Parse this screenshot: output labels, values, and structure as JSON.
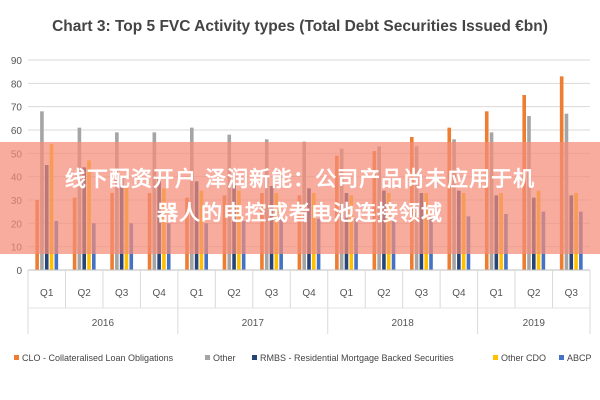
{
  "chart_data": {
    "type": "bar",
    "title": "Chart 3: Top 5 FVC Activity types (Total Debt Securities Issued €bn)",
    "xlabel": "",
    "ylabel": "",
    "ylim": [
      0,
      90
    ],
    "yticks": [
      0,
      10,
      20,
      30,
      40,
      50,
      60,
      70,
      80,
      90
    ],
    "grid": true,
    "legend_position": "bottom",
    "categories": [
      "Q1",
      "Q2",
      "Q3",
      "Q4",
      "Q1",
      "Q2",
      "Q3",
      "Q4",
      "Q1",
      "Q2",
      "Q3",
      "Q4",
      "Q1",
      "Q2",
      "Q3"
    ],
    "year_groups": [
      {
        "label": "2016",
        "count": 4
      },
      {
        "label": "2017",
        "count": 4
      },
      {
        "label": "2018",
        "count": 4
      },
      {
        "label": "2019",
        "count": 3
      }
    ],
    "series": [
      {
        "name": "CLO - Collateralised Loan Obligations",
        "color": "#ED7D31",
        "values": [
          30,
          31,
          33,
          33,
          31,
          32,
          33,
          32,
          49,
          51,
          57,
          61,
          68,
          75,
          83
        ]
      },
      {
        "name": "Other",
        "color": "#A5A5A5",
        "values": [
          68,
          61,
          59,
          59,
          61,
          58,
          56,
          55,
          52,
          53,
          53,
          56,
          59,
          66,
          67
        ]
      },
      {
        "name": "RMBS - Residential Mortgage Backed Securities",
        "color": "#264478",
        "values": [
          45,
          44,
          40,
          40,
          38,
          37,
          36,
          35,
          33,
          34,
          33,
          34,
          32,
          31,
          32
        ]
      },
      {
        "name": "Other CDO",
        "color": "#FFC000",
        "values": [
          54,
          47,
          36,
          35,
          34,
          34,
          33,
          33,
          32,
          33,
          33,
          33,
          33,
          34,
          33
        ]
      },
      {
        "name": "ABCP",
        "color": "#4472C4",
        "values": [
          21,
          20,
          20,
          20,
          20,
          21,
          22,
          22,
          22,
          22,
          23,
          23,
          24,
          25,
          25
        ]
      }
    ]
  },
  "overlay": {
    "line1": "线下配资开户 泽润新能：公司产品尚未应用于机",
    "line2": "器人的电控或者电池连接领域"
  }
}
